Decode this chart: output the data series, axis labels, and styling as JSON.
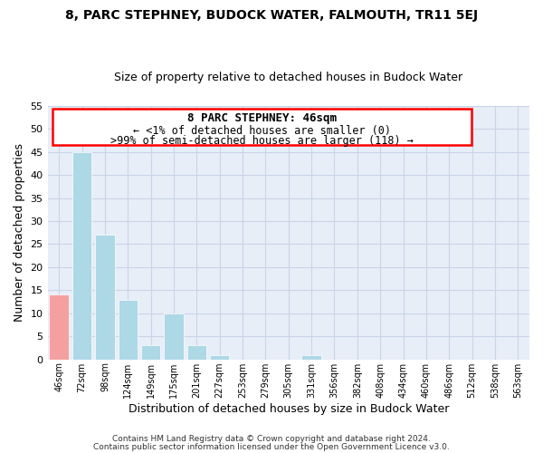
{
  "title": "8, PARC STEPHNEY, BUDOCK WATER, FALMOUTH, TR11 5EJ",
  "subtitle": "Size of property relative to detached houses in Budock Water",
  "xlabel": "Distribution of detached houses by size in Budock Water",
  "ylabel": "Number of detached properties",
  "bar_labels": [
    "46sqm",
    "72sqm",
    "98sqm",
    "124sqm",
    "149sqm",
    "175sqm",
    "201sqm",
    "227sqm",
    "253sqm",
    "279sqm",
    "305sqm",
    "331sqm",
    "356sqm",
    "382sqm",
    "408sqm",
    "434sqm",
    "460sqm",
    "486sqm",
    "512sqm",
    "538sqm",
    "563sqm"
  ],
  "bar_values": [
    14,
    45,
    27,
    13,
    3,
    10,
    3,
    1,
    0,
    0,
    0,
    1,
    0,
    0,
    0,
    0,
    0,
    0,
    0,
    0,
    0
  ],
  "bar_color_highlight": "#f4a0a0",
  "bar_color_normal": "#add8e6",
  "ylim": [
    0,
    55
  ],
  "yticks": [
    0,
    5,
    10,
    15,
    20,
    25,
    30,
    35,
    40,
    45,
    50,
    55
  ],
  "annotation_title": "8 PARC STEPHNEY: 46sqm",
  "annotation_line1": "← <1% of detached houses are smaller (0)",
  "annotation_line2": ">99% of semi-detached houses are larger (118) →",
  "footer_line1": "Contains HM Land Registry data © Crown copyright and database right 2024.",
  "footer_line2": "Contains public sector information licensed under the Open Government Licence v3.0.",
  "highlight_bar_index": 0,
  "background_color": "#ffffff",
  "plot_bg_color": "#e8eef8",
  "grid_color": "#c8d4e8",
  "bar_edge_color": "#ffffff",
  "title_fontsize": 10,
  "subtitle_fontsize": 9,
  "axis_label_fontsize": 9,
  "tick_fontsize": 7,
  "annotation_title_fontsize": 9,
  "annotation_text_fontsize": 8.5,
  "footer_fontsize": 6.5
}
